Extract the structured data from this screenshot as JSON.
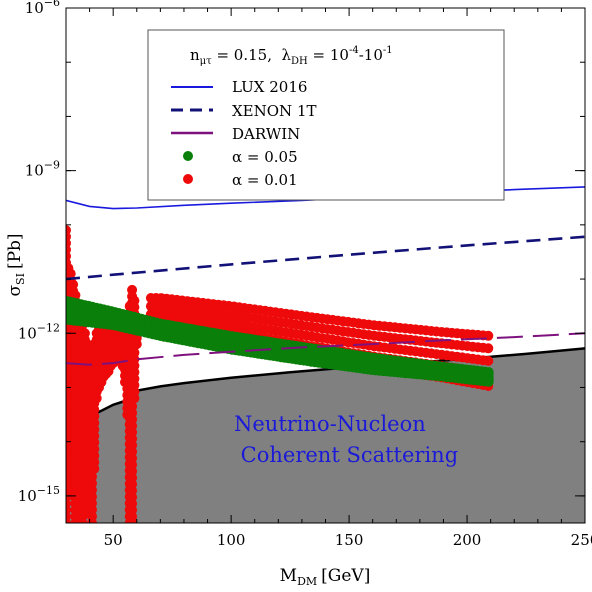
{
  "chart_data": {
    "type": "scatter",
    "xlabel": {
      "main": "M",
      "sub": "DM",
      "unit": "[GeV]"
    },
    "ylabel": {
      "main": "σ",
      "sub": "SI",
      "unit": "[Pb]"
    },
    "xlim": [
      30,
      250
    ],
    "ylim_log10": [
      -15.5,
      -6
    ],
    "yscale": "log",
    "x_ticks": [
      50,
      100,
      150,
      200,
      250
    ],
    "x_tick_labels": [
      "50",
      "100",
      "150",
      "200",
      "250"
    ],
    "y_ticks_log10": [
      -15,
      -12,
      -9,
      -6
    ],
    "y_tick_labels": [
      {
        "base": "10",
        "exp": "−15"
      },
      {
        "base": "10",
        "exp": "−12"
      },
      {
        "base": "10",
        "exp": "−9"
      },
      {
        "base": "10",
        "exp": "−6"
      }
    ],
    "legend_title": "n<tspan baseline-shift='sub' font-size='10'>μτ</tspan> = 0.15,  λ<tspan baseline-shift='sub' font-size='10'>DH</tspan> = 10<tspan baseline-shift='super' font-size='10'>-4</tspan>-10<tspan baseline-shift='super' font-size='10'>-1</tspan>",
    "legend_title_parts": {
      "n": "n",
      "n_sub": "μτ",
      "n_val": " = 0.15,  ",
      "l": "λ",
      "l_sub": "DH",
      "l_val": " = 10",
      "exp1": "-4",
      "mid": "-10",
      "exp2": "-1"
    },
    "legend_position": "top-center",
    "grid": false,
    "lines": [
      {
        "name": "LUX 2016",
        "color": "#1a1adf",
        "style": "solid",
        "x": [
          30,
          40,
          50,
          60,
          80,
          100,
          130,
          160,
          190,
          220,
          250
        ],
        "log10y": [
          -9.55,
          -9.66,
          -9.7,
          -9.69,
          -9.64,
          -9.6,
          -9.55,
          -9.48,
          -9.41,
          -9.35,
          -9.3
        ]
      },
      {
        "name": "XENON 1T",
        "color": "#111177",
        "style": "dashed",
        "x": [
          30,
          50,
          100,
          150,
          200,
          250
        ],
        "log10y": [
          -11.0,
          -10.92,
          -10.73,
          -10.55,
          -10.38,
          -10.22
        ]
      },
      {
        "name": "DARWIN",
        "color": "#7f117f",
        "style": "longdash",
        "x": [
          30,
          40,
          50,
          60,
          80,
          100,
          130,
          160,
          190,
          220,
          250
        ],
        "log10y": [
          -12.55,
          -12.58,
          -12.55,
          -12.48,
          -12.4,
          -12.34,
          -12.26,
          -12.2,
          -12.13,
          -12.07,
          -12.0
        ]
      }
    ],
    "neutrino_floor": {
      "label_line1": "Neutrino-Nucleon",
      "label_line2": " Coherent Scattering",
      "fill": "#808080",
      "x": [
        30,
        35,
        40,
        45,
        50,
        55,
        60,
        70,
        80,
        100,
        125,
        150,
        175,
        200,
        225,
        250
      ],
      "log10y": [
        -13.7,
        -13.6,
        -13.53,
        -13.43,
        -13.32,
        -13.25,
        -13.06,
        -12.98,
        -12.92,
        -12.82,
        -12.72,
        -12.63,
        -12.55,
        -12.47,
        -12.38,
        -12.28
      ]
    },
    "scatter_series": [
      {
        "name": "α = 0.05",
        "color": "#0a7f0a",
        "band_upper": {
          "x": [
            30,
            50,
            70,
            100,
            130,
            160,
            190,
            210
          ],
          "log10y": [
            -11.4,
            -11.6,
            -11.82,
            -12.05,
            -12.25,
            -12.45,
            -12.62,
            -12.72
          ]
        },
        "band_lower": {
          "x": [
            30,
            50,
            70,
            100,
            130,
            160,
            190,
            210
          ],
          "log10y": [
            -11.75,
            -11.85,
            -12.05,
            -12.3,
            -12.5,
            -12.68,
            -12.8,
            -12.9
          ]
        }
      },
      {
        "name": "α = 0.01",
        "color": "#ee0a0a",
        "band_upper": {
          "x": [
            70,
            100,
            130,
            160,
            190,
            210
          ],
          "log10y": [
            -11.35,
            -11.5,
            -11.68,
            -11.85,
            -11.98,
            -12.05
          ]
        },
        "band_lower": {
          "x": [
            70,
            100,
            130,
            160,
            190,
            210
          ],
          "log10y": [
            -11.95,
            -12.15,
            -12.38,
            -12.62,
            -12.82,
            -12.98
          ]
        },
        "spike_left_x": [
          30,
          31,
          32,
          33,
          34,
          35,
          36,
          37,
          38,
          39,
          40,
          41,
          42,
          43,
          44,
          45,
          46,
          47,
          48,
          49,
          50,
          51,
          52,
          53,
          54,
          55,
          56,
          57,
          58,
          59,
          60
        ],
        "spike_left_top_log10y": [
          -10.1,
          -10.8,
          -10.9,
          -11.1,
          -11.3,
          -11.45,
          -11.6,
          -11.85,
          -12.0,
          -12.2,
          -12.5,
          -12.7,
          -12.2,
          -12.0,
          -11.9,
          -11.85,
          -11.8,
          -11.8,
          -11.8,
          -11.8,
          -11.8,
          -11.8,
          -11.85,
          -11.9,
          -12.0,
          -12.2,
          -12.3,
          -11.5,
          -11.2,
          -11.4,
          -11.75
        ],
        "spike_left_bottom_log10y": [
          -15.5,
          -14.8,
          -14.5,
          -15.0,
          -15.5,
          -15.0,
          -14.3,
          -15.5,
          -14.5,
          -13.8,
          -15.3,
          -15.5,
          -14.5,
          -13.2,
          -13.0,
          -12.9,
          -12.8,
          -12.75,
          -12.7,
          -12.6,
          -12.55,
          -12.5,
          -12.5,
          -12.5,
          -12.6,
          -12.9,
          -13.5,
          -15.5,
          -15.5,
          -13.2,
          -12.2
        ]
      }
    ]
  }
}
